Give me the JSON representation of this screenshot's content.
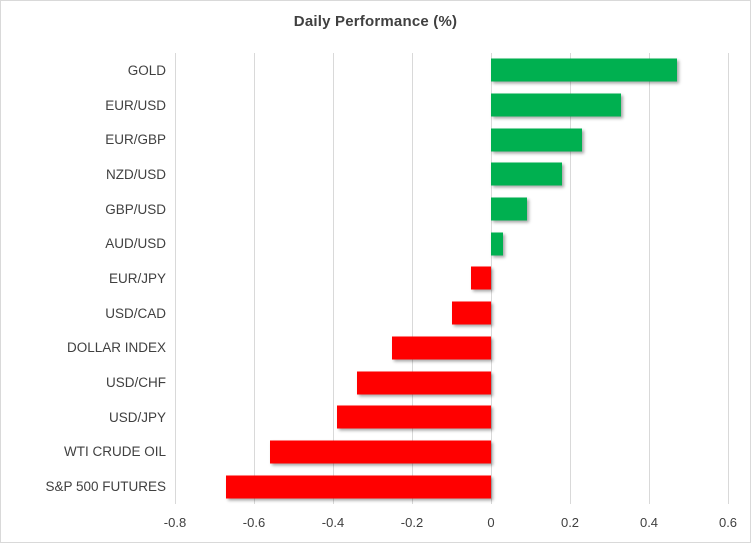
{
  "chart_data": {
    "type": "bar",
    "orientation": "horizontal",
    "title": "Daily Performance (%)",
    "categories": [
      "GOLD",
      "EUR/USD",
      "EUR/GBP",
      "NZD/USD",
      "GBP/USD",
      "AUD/USD",
      "EUR/JPY",
      "USD/CAD",
      "DOLLAR INDEX",
      "USD/CHF",
      "USD/JPY",
      "WTI CRUDE OIL",
      "S&P 500 FUTURES"
    ],
    "values": [
      0.47,
      0.33,
      0.23,
      0.18,
      0.09,
      0.03,
      -0.05,
      -0.1,
      -0.25,
      -0.34,
      -0.39,
      -0.56,
      -0.67
    ],
    "xlabel": "",
    "ylabel": "",
    "xlim": [
      -0.8,
      0.6
    ],
    "xticks": [
      -0.8,
      -0.6,
      -0.4,
      -0.2,
      0,
      0.2,
      0.4,
      0.6
    ],
    "xtick_labels": [
      "-0.8",
      "-0.6",
      "-0.4",
      "-0.2",
      "0",
      "0.2",
      "0.4",
      "0.6"
    ],
    "grid": true,
    "legend": false,
    "colors": {
      "positive": "#00B050",
      "negative": "#FF0000",
      "gridline": "#D9D9D9",
      "text": "#404040",
      "background": "#FFFFFF"
    }
  }
}
